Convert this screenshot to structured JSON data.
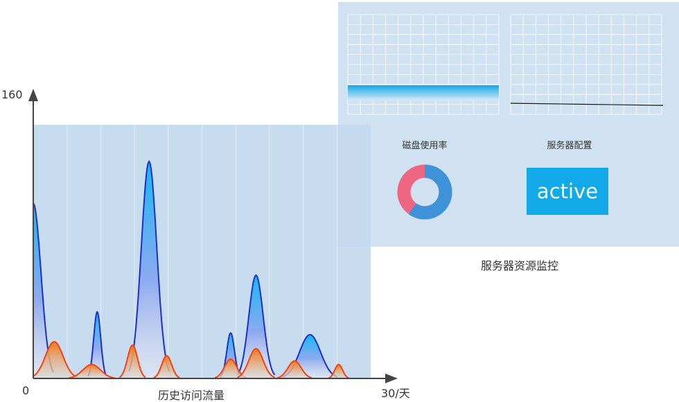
{
  "chart_data": {
    "type": "area",
    "xlabel": "历史访问流量",
    "x_axis_unit": "30/天",
    "y_max_label": "160",
    "origin_label": "0",
    "ylim": [
      0,
      160
    ],
    "xlim": [
      0,
      30
    ],
    "series": [
      {
        "color": "#1d2fc4",
        "peaks": [
          {
            "center": 0.0,
            "height": 100,
            "width": 0.7
          },
          {
            "center": 5.8,
            "height": 38,
            "width": 0.32
          },
          {
            "center": 10.5,
            "height": 124,
            "width": 0.7
          },
          {
            "center": 17.9,
            "height": 26,
            "width": 0.35
          },
          {
            "center": 20.2,
            "height": 59,
            "width": 0.65
          },
          {
            "center": 25.1,
            "height": 25,
            "width": 0.95
          }
        ]
      },
      {
        "color": "#f04416",
        "peaks": [
          {
            "center": 1.9,
            "height": 21,
            "width": 0.8
          },
          {
            "center": 5.3,
            "height": 8,
            "width": 0.8
          },
          {
            "center": 9.0,
            "height": 19,
            "width": 0.45
          },
          {
            "center": 12.1,
            "height": 13,
            "width": 0.45
          },
          {
            "center": 17.9,
            "height": 11,
            "width": 0.55
          },
          {
            "center": 20.2,
            "height": 17,
            "width": 0.65
          },
          {
            "center": 23.7,
            "height": 10,
            "width": 0.6
          },
          {
            "center": 27.7,
            "height": 8,
            "width": 0.35
          }
        ]
      }
    ]
  },
  "panel": {
    "disk_label": "磁盘使用率",
    "config_label": "服务器配置",
    "status": "active",
    "caption": "服务器资源监控",
    "disk_usage_percent": 60,
    "disk_used_color": "#3e93d8",
    "disk_free_color": "#ee6682"
  }
}
